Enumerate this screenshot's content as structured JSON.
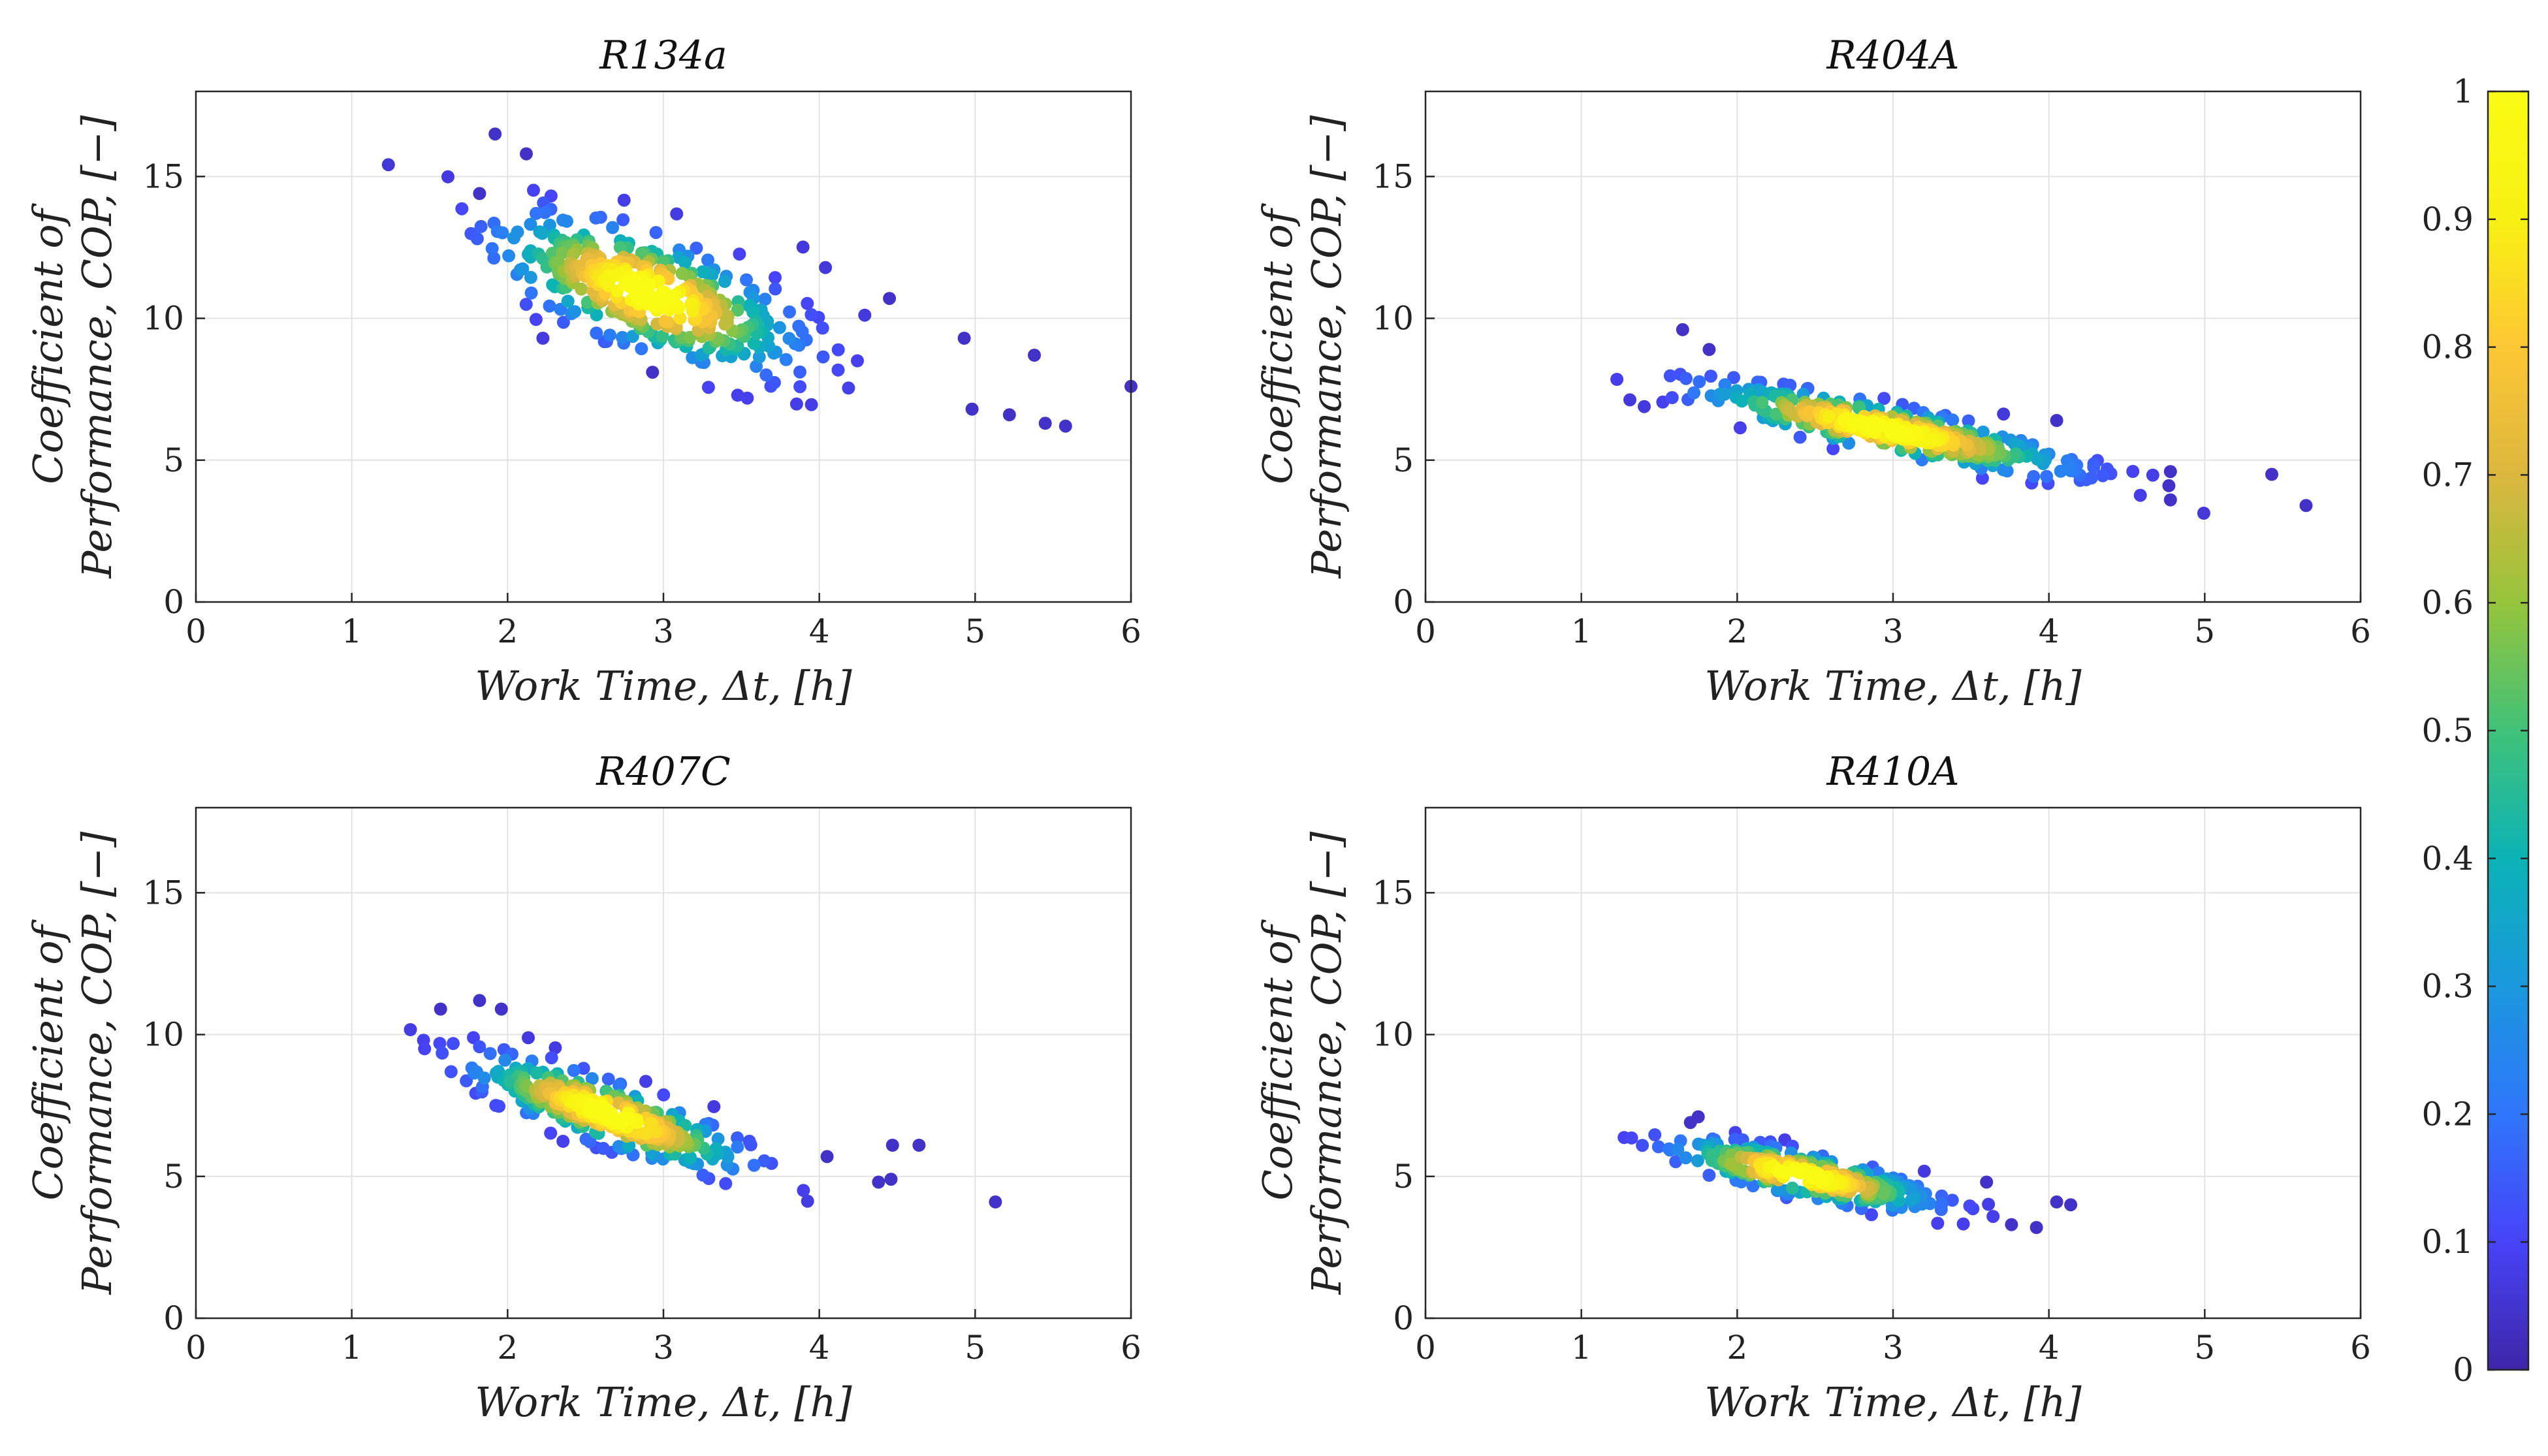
{
  "chart_data": {
    "type": "scatter",
    "colorbar": {
      "ticks": [
        "0",
        "0.1",
        "0.2",
        "0.3",
        "0.4",
        "0.5",
        "0.6",
        "0.7",
        "0.8",
        "0.9",
        "1"
      ],
      "range": [
        0,
        1
      ],
      "colormap": [
        "#3e26a8",
        "#4743f8",
        "#2f76fb",
        "#1a98dd",
        "#0bb3b6",
        "#40c278",
        "#96c43b",
        "#dcb73e",
        "#fdc734",
        "#f8f112",
        "#f9fb15"
      ]
    },
    "panels": [
      {
        "title": "R134a",
        "xlabel": "Work Time, Δt, [h]",
        "ylabel_line1": "Coefficient of",
        "ylabel_line2": "Performance, COP, [−]",
        "xlim": [
          0,
          6
        ],
        "ylim": [
          0,
          18
        ],
        "xticks": [
          "0",
          "1",
          "2",
          "3",
          "4",
          "5",
          "6"
        ],
        "yticks": [
          "0",
          "5",
          "10",
          "15"
        ],
        "cluster": {
          "cx": 2.9,
          "cy": 10.9,
          "slope": -1.85,
          "spread_x": 0.48,
          "spread_perp": 1.0,
          "n": 420,
          "seed": 11
        },
        "outliers": [
          [
            1.92,
            16.5
          ],
          [
            1.82,
            14.4
          ],
          [
            2.12,
            15.8
          ],
          [
            4.93,
            9.3
          ],
          [
            5.38,
            8.7
          ],
          [
            6.0,
            7.6
          ],
          [
            5.22,
            6.6
          ],
          [
            5.45,
            6.3
          ],
          [
            5.58,
            6.2
          ],
          [
            4.98,
            6.8
          ],
          [
            2.93,
            8.1
          ],
          [
            4.45,
            10.7
          ]
        ]
      },
      {
        "title": "R404A",
        "xlabel": "Work Time, Δt, [h]",
        "ylabel_line1": "Coefficient of",
        "ylabel_line2": "Performance, COP, [−]",
        "xlim": [
          0,
          6
        ],
        "ylim": [
          0,
          18
        ],
        "xticks": [
          "0",
          "1",
          "2",
          "3",
          "4",
          "5",
          "6"
        ],
        "yticks": [
          "0",
          "5",
          "10",
          "15"
        ],
        "cluster": {
          "cx": 2.95,
          "cy": 6.1,
          "slope": -1.12,
          "spread_x": 0.6,
          "spread_perp": 0.42,
          "n": 380,
          "seed": 23
        },
        "outliers": [
          [
            1.65,
            9.6
          ],
          [
            1.82,
            8.9
          ],
          [
            4.78,
            4.6
          ],
          [
            4.78,
            3.6
          ],
          [
            5.43,
            4.5
          ],
          [
            5.65,
            3.4
          ],
          [
            4.77,
            4.1
          ],
          [
            4.05,
            6.4
          ]
        ]
      },
      {
        "title": "R407C",
        "xlabel": "Work Time, Δt, [h]",
        "ylabel_line1": "Coefficient of",
        "ylabel_line2": "Performance, COP, [−]",
        "xlim": [
          0,
          6
        ],
        "ylim": [
          0,
          18
        ],
        "xticks": [
          "0",
          "1",
          "2",
          "3",
          "4",
          "5",
          "6"
        ],
        "yticks": [
          "0",
          "5",
          "10",
          "15"
        ],
        "cluster": {
          "cx": 2.65,
          "cy": 7.2,
          "slope": -1.9,
          "spread_x": 0.44,
          "spread_perp": 0.55,
          "n": 360,
          "seed": 37
        },
        "outliers": [
          [
            1.57,
            10.9
          ],
          [
            1.82,
            11.2
          ],
          [
            1.96,
            10.9
          ],
          [
            4.47,
            6.1
          ],
          [
            4.64,
            6.1
          ],
          [
            4.38,
            4.8
          ],
          [
            4.46,
            4.9
          ],
          [
            5.13,
            4.1
          ],
          [
            4.05,
            5.7
          ]
        ]
      },
      {
        "title": "R410A",
        "xlabel": "Work Time, Δt, [h]",
        "ylabel_line1": "Coefficient of",
        "ylabel_line2": "Performance, COP, [−]",
        "xlim": [
          0,
          6
        ],
        "ylim": [
          0,
          18
        ],
        "xticks": [
          "0",
          "1",
          "2",
          "3",
          "4",
          "5",
          "6"
        ],
        "yticks": [
          "0",
          "5",
          "10",
          "15"
        ],
        "cluster": {
          "cx": 2.42,
          "cy": 5.05,
          "slope": -1.12,
          "spread_x": 0.42,
          "spread_perp": 0.38,
          "n": 340,
          "seed": 51
        },
        "outliers": [
          [
            1.75,
            7.1
          ],
          [
            1.7,
            6.9
          ],
          [
            3.76,
            3.3
          ],
          [
            3.92,
            3.2
          ],
          [
            4.05,
            4.1
          ],
          [
            4.14,
            4.0
          ],
          [
            3.6,
            4.8
          ]
        ]
      }
    ]
  }
}
